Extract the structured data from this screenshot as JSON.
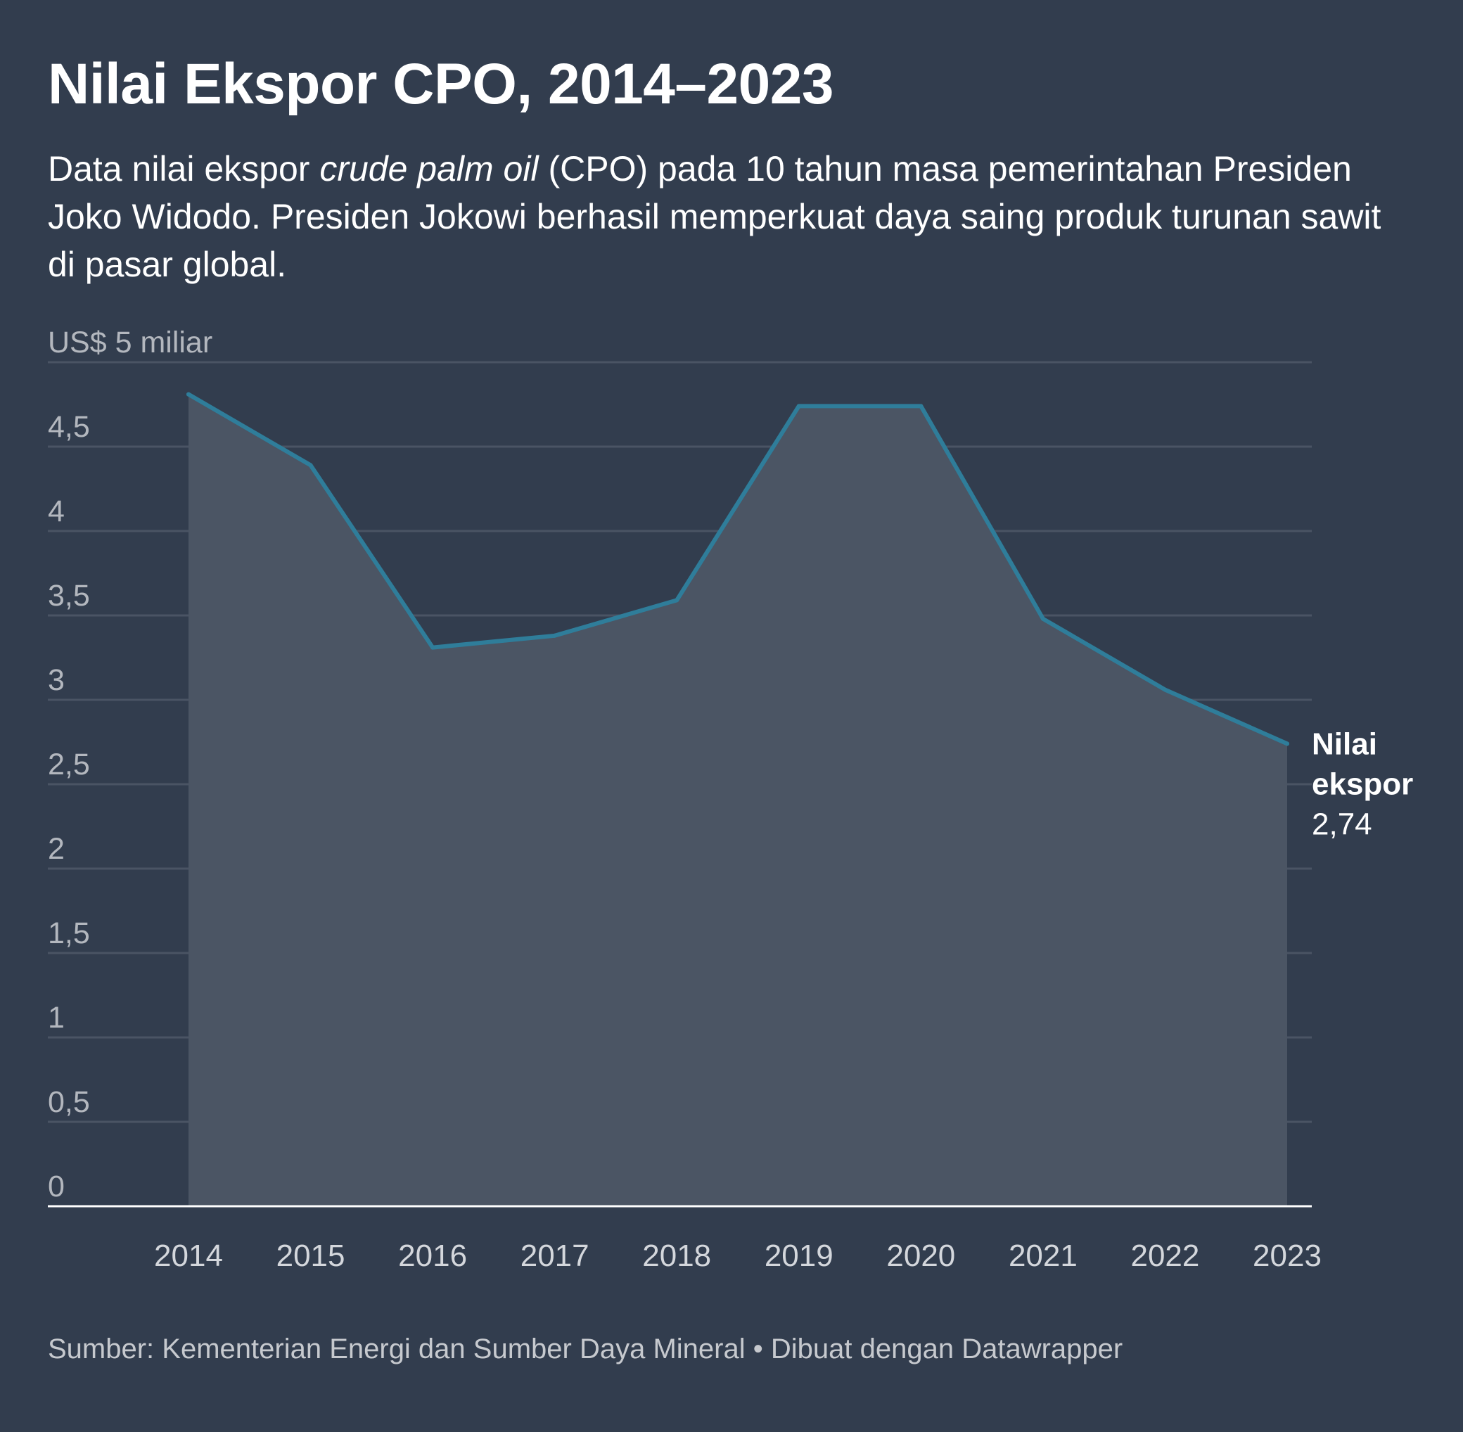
{
  "title": "Nilai Ekspor CPO, 2014–2023",
  "subtitle": {
    "part1": "Data nilai ekspor ",
    "italic": "crude palm oil",
    "part2": " (CPO) pada 10 tahun masa pemerintahan Presiden Joko Widodo. Presiden Jokowi berhasil memperkuat daya saing produk turunan sawit di pasar global."
  },
  "footer": {
    "source": "Sumber: Kementerian Energi dan Sumber Daya Mineral",
    "separator": "•",
    "credit": "Dibuat dengan Datawrapper"
  },
  "colors": {
    "background": "#323d4e",
    "line": "#2f7d9a",
    "area": "#4b5564",
    "grid": "#4a5464",
    "axis_text": "#b3b7be",
    "baseline": "#ffffff"
  },
  "chart_data": {
    "type": "area",
    "title": "Nilai Ekspor CPO, 2014–2023",
    "ylabel": "US$ 5 miliar",
    "xlabel": "",
    "categories": [
      "2014",
      "2015",
      "2016",
      "2017",
      "2018",
      "2019",
      "2020",
      "2021",
      "2022",
      "2023"
    ],
    "series": [
      {
        "name": "Nilai ekspor",
        "values": [
          4.81,
          4.39,
          3.31,
          3.38,
          3.59,
          4.74,
          4.74,
          3.48,
          3.06,
          2.74
        ]
      }
    ],
    "ylim": [
      0,
      5
    ],
    "yticks": [
      0,
      0.5,
      1,
      1.5,
      2,
      2.5,
      3,
      3.5,
      4,
      4.5,
      5
    ],
    "ytick_labels": [
      "0",
      "0,5",
      "1",
      "1,5",
      "2",
      "2,5",
      "3",
      "3,5",
      "4",
      "4,5",
      "US$ 5 miliar"
    ],
    "end_label": {
      "name_line1": "Nilai",
      "name_line2": "ekspor",
      "value": "2,74"
    },
    "grid": true
  }
}
